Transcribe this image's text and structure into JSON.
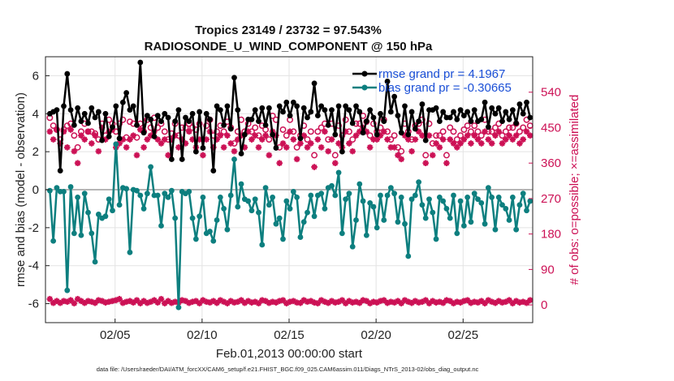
{
  "chart_data": {
    "type": "line",
    "title": "Tropics 23149 / 23732 = 97.543%",
    "subtitle": "RADIOSONDE_U_WIND_COMPONENT @ 150 hPa",
    "xlabel": "Feb.01,2013 00:00:00 start",
    "ylabel": "rmse and bias (model - observation)",
    "ylabel_right": "# of obs: o=possible; ×=assimilated",
    "footer": "data file: /Users/raeder/DAI/ATM_forcXX/CAM6_setup/f.e21.FHIST_BGC.f09_025.CAM6assim.011/Diags_NTrS_2013-02/obs_diag_output.nc",
    "x_range_days": [
      1,
      29
    ],
    "ylim": [
      -7,
      7
    ],
    "ylim_right": [
      -45,
      630
    ],
    "xticks": [
      5,
      10,
      15,
      20,
      25
    ],
    "xtick_labels": [
      "02/05",
      "02/10",
      "02/15",
      "02/20",
      "02/25"
    ],
    "yticks": [
      -6,
      -4,
      -2,
      0,
      2,
      4,
      6
    ],
    "ytick_labels": [
      "-6",
      "-4",
      "-2",
      "0",
      "2",
      "4",
      "6"
    ],
    "yticks_right": [
      0,
      90,
      180,
      270,
      360,
      450,
      540
    ],
    "ytick_labels_right": [
      "0",
      "90",
      "180",
      "270",
      "360",
      "450",
      "540"
    ],
    "x_start": 1.25,
    "x_step": 0.25,
    "series": [
      {
        "name": "rmse",
        "legend": "rmse grand pr = 4.1967",
        "color": "#000000",
        "values": [
          4.0,
          4.1,
          4.2,
          1.0,
          4.4,
          6.1,
          4.2,
          3.4,
          4.3,
          3.6,
          4.0,
          3.5,
          4.3,
          3.8,
          4.1,
          2.6,
          4.0,
          2.8,
          3.3,
          4.4,
          2.7,
          4.6,
          5.1,
          4.2,
          4.4,
          3.4,
          6.7,
          3.0,
          3.9,
          3.7,
          2.8,
          3.9,
          3.6,
          4.0,
          3.8,
          1.6,
          3.6,
          4.2,
          1.6,
          3.8,
          3.6,
          4.0,
          2.0,
          4.1,
          2.2,
          4.0,
          3.7,
          1.0,
          4.4,
          4.2,
          3.4,
          4.4,
          3.2,
          5.9,
          4.2,
          1.9,
          2.9,
          3.7,
          3.7,
          4.2,
          3.6,
          4.3,
          3.4,
          4.3,
          2.9,
          2.2,
          4.4,
          4.1,
          4.6,
          3.9,
          4.6,
          4.4,
          2.7,
          4.3,
          3.8,
          4.1,
          5.6,
          3.9,
          4.4,
          4.2,
          3.4,
          4.2,
          2.9,
          4.4,
          2.0,
          4.4,
          4.2,
          3.5,
          4.4,
          4.1,
          3.0,
          3.6,
          4.2,
          3.8,
          2.9,
          4.0,
          3.6,
          5.7,
          4.1,
          4.9,
          3.9,
          3.0,
          4.4,
          2.9,
          4.1,
          3.2,
          3.6,
          4.5,
          2.6,
          4.2,
          4.2,
          4.3,
          3.6,
          4.1,
          3.8,
          3.8,
          4.1,
          3.7,
          4.2,
          3.9,
          4.1,
          3.6,
          4.2,
          3.6,
          3.7,
          4.6,
          3.3,
          4.3,
          4.0,
          4.3,
          3.6,
          4.1,
          3.7,
          4.2,
          3.5,
          4.5,
          4.0,
          4.6,
          3.8,
          3.8,
          3.7,
          4.2,
          3.9,
          4.2,
          3.5,
          3.8,
          3.6,
          4.5,
          4.3,
          3.9,
          3.7,
          4.4,
          3.5,
          4.1,
          3.8,
          4.3,
          3.6,
          4.0,
          4.2,
          4.0,
          3.5,
          4.3,
          3.6,
          4.1,
          3.9,
          3.8,
          3.6,
          4.2,
          4.0,
          3.8,
          4.3,
          3.7,
          4.1,
          3.9,
          4.0,
          3.8,
          4.2,
          3.7,
          4.2,
          3.9,
          4.1,
          3.6,
          4.2,
          3.9,
          4.0,
          4.1,
          3.7,
          4.2,
          4.0,
          3.8,
          4.2,
          3.6,
          4.4,
          3.8,
          4.1,
          3.9,
          4.3,
          4.0,
          4.2,
          3.9,
          4.1,
          4.0,
          4.2,
          4.1,
          4.3,
          4.0,
          4.1,
          4.2
        ]
      }
    ]
  }
}
